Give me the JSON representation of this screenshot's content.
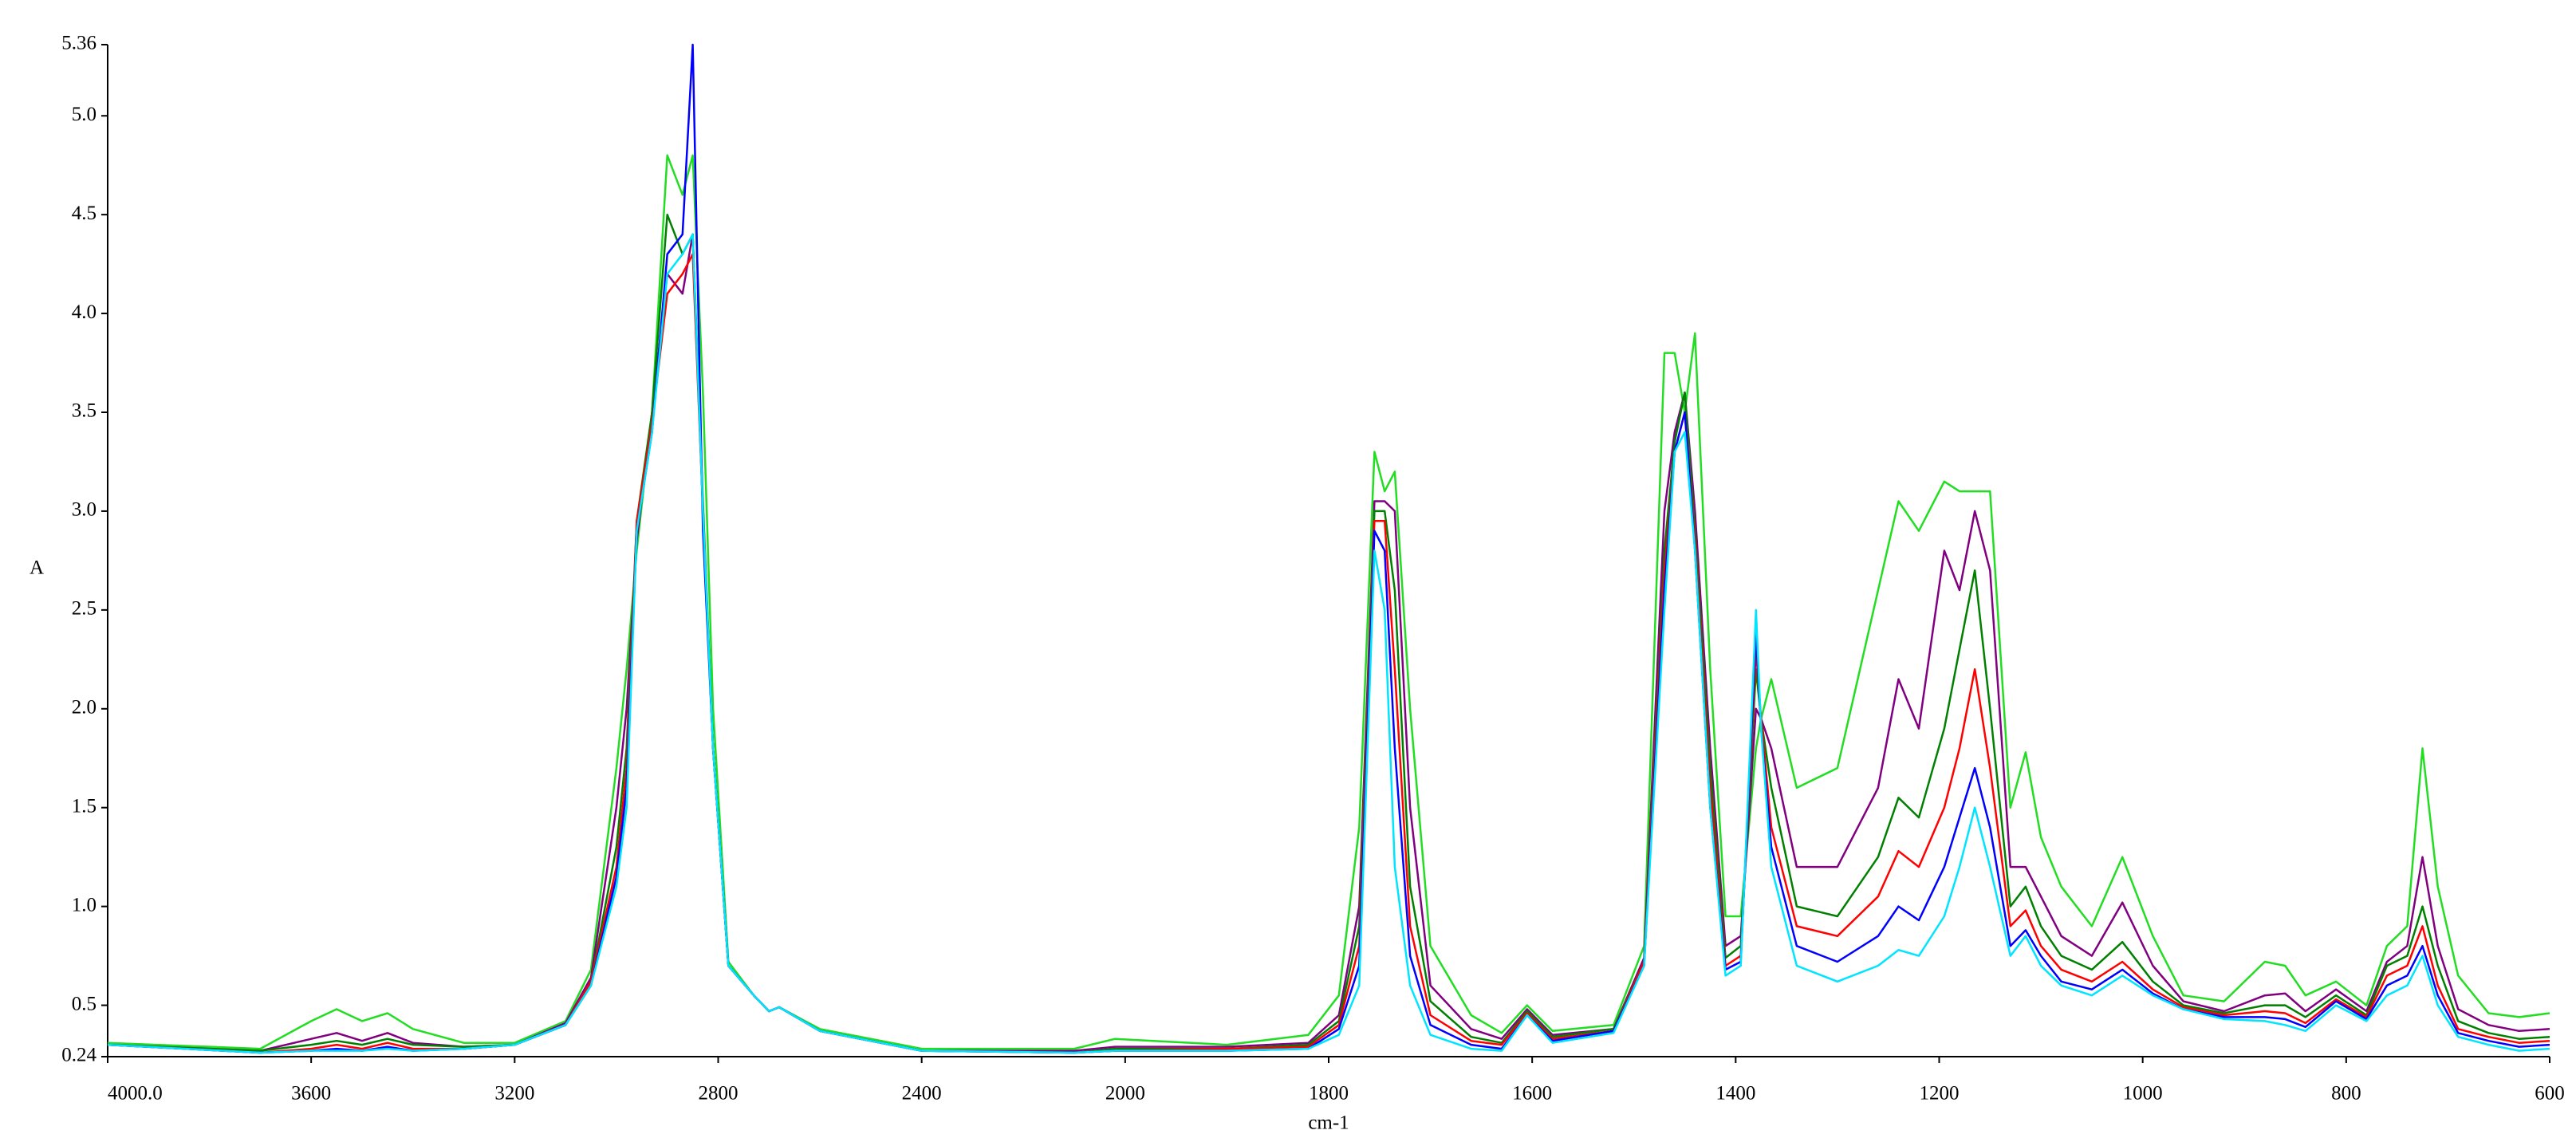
{
  "chart_data": {
    "type": "line",
    "xlabel": "cm-1",
    "ylabel": "A",
    "xlim": [
      4000,
      600
    ],
    "xticks": [
      {
        "value": 4000,
        "label": "4000.0"
      },
      3600,
      3200,
      2800,
      2400,
      2000,
      1800,
      1600,
      1400,
      1200,
      1000,
      800,
      600
    ],
    "ylim": [
      0.24,
      5.36
    ],
    "yticks": [
      0.24,
      0.5,
      {
        "value": 1,
        "label": "1.0"
      },
      1.5,
      {
        "value": 2,
        "label": "2.0"
      },
      2.5,
      {
        "value": 3,
        "label": "3.0"
      },
      3.5,
      {
        "value": 4,
        "label": "4.0"
      },
      4.5,
      {
        "value": 5,
        "label": "5.0"
      },
      5.36
    ],
    "grid": false,
    "x": [
      4000,
      3700,
      3600,
      3550,
      3500,
      3450,
      3400,
      3300,
      3200,
      3100,
      3050,
      3000,
      2980,
      2960,
      2930,
      2900,
      2870,
      2850,
      2830,
      2810,
      2780,
      2730,
      2700,
      2680,
      2600,
      2400,
      2100,
      2020,
      1900,
      1820,
      1790,
      1770,
      1755,
      1745,
      1735,
      1720,
      1700,
      1660,
      1630,
      1605,
      1580,
      1520,
      1490,
      1470,
      1460,
      1450,
      1440,
      1425,
      1410,
      1395,
      1380,
      1375,
      1365,
      1340,
      1300,
      1260,
      1240,
      1220,
      1195,
      1180,
      1165,
      1150,
      1130,
      1115,
      1100,
      1080,
      1050,
      1020,
      990,
      960,
      920,
      880,
      860,
      840,
      810,
      780,
      760,
      740,
      725,
      710,
      690,
      660,
      630,
      600
    ],
    "series": [
      {
        "color": "#22dd22",
        "values": [
          0.31,
          0.28,
          0.42,
          0.48,
          0.42,
          0.46,
          0.38,
          0.31,
          0.31,
          0.42,
          0.68,
          1.7,
          2.2,
          2.8,
          3.5,
          4.8,
          4.6,
          4.8,
          3.6,
          2.0,
          0.72,
          0.55,
          0.47,
          0.49,
          0.38,
          0.28,
          0.28,
          0.33,
          0.3,
          0.35,
          0.55,
          1.4,
          3.3,
          3.1,
          3.2,
          2.0,
          0.8,
          0.45,
          0.36,
          0.5,
          0.37,
          0.4,
          0.8,
          3.8,
          3.8,
          3.5,
          3.9,
          2.2,
          0.95,
          0.95,
          1.8,
          1.95,
          2.15,
          1.6,
          1.7,
          2.6,
          3.05,
          2.9,
          3.15,
          3.1,
          3.1,
          3.1,
          1.5,
          1.78,
          1.35,
          1.1,
          0.9,
          1.25,
          0.85,
          0.55,
          0.52,
          0.72,
          0.7,
          0.55,
          0.62,
          0.5,
          0.8,
          0.9,
          1.8,
          1.1,
          0.65,
          0.46,
          0.44,
          0.46
        ]
      },
      {
        "color": "#800080",
        "values": [
          0.3,
          0.27,
          0.33,
          0.36,
          0.32,
          0.36,
          0.31,
          0.29,
          0.3,
          0.41,
          0.64,
          1.5,
          2.0,
          2.85,
          3.5,
          4.2,
          4.1,
          4.4,
          3.0,
          1.8,
          0.7,
          0.55,
          0.47,
          0.49,
          0.37,
          0.27,
          0.27,
          0.29,
          0.29,
          0.31,
          0.45,
          1.0,
          3.05,
          3.05,
          3.0,
          1.5,
          0.6,
          0.38,
          0.33,
          0.48,
          0.35,
          0.38,
          0.74,
          3.0,
          3.4,
          3.6,
          3.0,
          1.8,
          0.8,
          0.85,
          2.0,
          1.95,
          1.8,
          1.2,
          1.2,
          1.6,
          2.15,
          1.9,
          2.8,
          2.6,
          3.0,
          2.7,
          1.2,
          1.2,
          1.05,
          0.85,
          0.75,
          1.02,
          0.7,
          0.52,
          0.47,
          0.55,
          0.56,
          0.47,
          0.58,
          0.47,
          0.72,
          0.8,
          1.25,
          0.8,
          0.48,
          0.4,
          0.37,
          0.38
        ]
      },
      {
        "color": "#008000",
        "values": [
          0.3,
          0.27,
          0.3,
          0.32,
          0.3,
          0.33,
          0.3,
          0.29,
          0.3,
          0.4,
          0.62,
          1.3,
          1.8,
          2.95,
          3.5,
          4.5,
          4.3,
          4.4,
          3.05,
          1.8,
          0.7,
          0.55,
          0.47,
          0.49,
          0.37,
          0.27,
          0.26,
          0.28,
          0.28,
          0.3,
          0.42,
          0.9,
          3.0,
          3.0,
          2.6,
          1.1,
          0.52,
          0.34,
          0.31,
          0.47,
          0.34,
          0.38,
          0.72,
          2.8,
          3.35,
          3.6,
          2.9,
          1.7,
          0.74,
          0.8,
          2.2,
          1.95,
          1.6,
          1.0,
          0.95,
          1.25,
          1.55,
          1.45,
          1.9,
          2.3,
          2.7,
          2.0,
          1.0,
          1.1,
          0.9,
          0.75,
          0.68,
          0.82,
          0.62,
          0.5,
          0.46,
          0.5,
          0.5,
          0.44,
          0.55,
          0.45,
          0.7,
          0.75,
          1.0,
          0.7,
          0.42,
          0.36,
          0.33,
          0.34
        ]
      },
      {
        "color": "#ff0000",
        "values": [
          0.3,
          0.26,
          0.28,
          0.3,
          0.28,
          0.31,
          0.28,
          0.28,
          0.3,
          0.4,
          0.62,
          1.2,
          1.7,
          2.95,
          3.45,
          4.1,
          4.2,
          4.3,
          3.0,
          1.8,
          0.7,
          0.55,
          0.47,
          0.49,
          0.37,
          0.27,
          0.26,
          0.27,
          0.28,
          0.29,
          0.4,
          0.8,
          2.95,
          2.95,
          2.2,
          0.9,
          0.45,
          0.32,
          0.3,
          0.46,
          0.33,
          0.37,
          0.72,
          2.7,
          3.3,
          3.5,
          2.85,
          1.6,
          0.7,
          0.75,
          2.3,
          1.95,
          1.4,
          0.9,
          0.85,
          1.05,
          1.28,
          1.2,
          1.5,
          1.8,
          2.2,
          1.7,
          0.9,
          0.98,
          0.8,
          0.68,
          0.62,
          0.72,
          0.58,
          0.49,
          0.45,
          0.47,
          0.46,
          0.41,
          0.53,
          0.44,
          0.65,
          0.7,
          0.9,
          0.6,
          0.38,
          0.34,
          0.31,
          0.32
        ]
      },
      {
        "color": "#0000ff",
        "values": [
          0.3,
          0.26,
          0.27,
          0.28,
          0.27,
          0.29,
          0.27,
          0.28,
          0.3,
          0.4,
          0.6,
          1.15,
          1.6,
          2.9,
          3.4,
          4.3,
          4.4,
          5.36,
          2.9,
          1.8,
          0.7,
          0.55,
          0.47,
          0.49,
          0.37,
          0.27,
          0.26,
          0.27,
          0.27,
          0.28,
          0.38,
          0.7,
          2.9,
          2.8,
          1.8,
          0.75,
          0.4,
          0.3,
          0.28,
          0.45,
          0.32,
          0.37,
          0.7,
          2.6,
          3.3,
          3.5,
          2.8,
          1.5,
          0.68,
          0.72,
          2.4,
          1.9,
          1.3,
          0.8,
          0.72,
          0.85,
          1.0,
          0.93,
          1.2,
          1.45,
          1.7,
          1.4,
          0.8,
          0.88,
          0.75,
          0.62,
          0.58,
          0.68,
          0.56,
          0.48,
          0.44,
          0.44,
          0.43,
          0.39,
          0.52,
          0.43,
          0.6,
          0.65,
          0.8,
          0.55,
          0.36,
          0.32,
          0.29,
          0.3
        ]
      },
      {
        "color": "#00e5ff",
        "values": [
          0.3,
          0.26,
          0.27,
          0.27,
          0.27,
          0.28,
          0.27,
          0.28,
          0.3,
          0.4,
          0.6,
          1.1,
          1.5,
          2.9,
          3.4,
          4.2,
          4.3,
          4.4,
          3.0,
          1.8,
          0.7,
          0.55,
          0.47,
          0.49,
          0.37,
          0.27,
          0.26,
          0.27,
          0.27,
          0.28,
          0.35,
          0.6,
          2.8,
          2.5,
          1.2,
          0.6,
          0.35,
          0.28,
          0.27,
          0.45,
          0.31,
          0.36,
          0.7,
          2.5,
          3.3,
          3.4,
          2.8,
          1.5,
          0.65,
          0.7,
          2.5,
          1.9,
          1.2,
          0.7,
          0.62,
          0.7,
          0.78,
          0.75,
          0.95,
          1.2,
          1.5,
          1.2,
          0.75,
          0.85,
          0.7,
          0.6,
          0.55,
          0.65,
          0.55,
          0.48,
          0.43,
          0.42,
          0.4,
          0.37,
          0.5,
          0.42,
          0.55,
          0.6,
          0.75,
          0.5,
          0.34,
          0.3,
          0.27,
          0.28
        ]
      }
    ]
  }
}
